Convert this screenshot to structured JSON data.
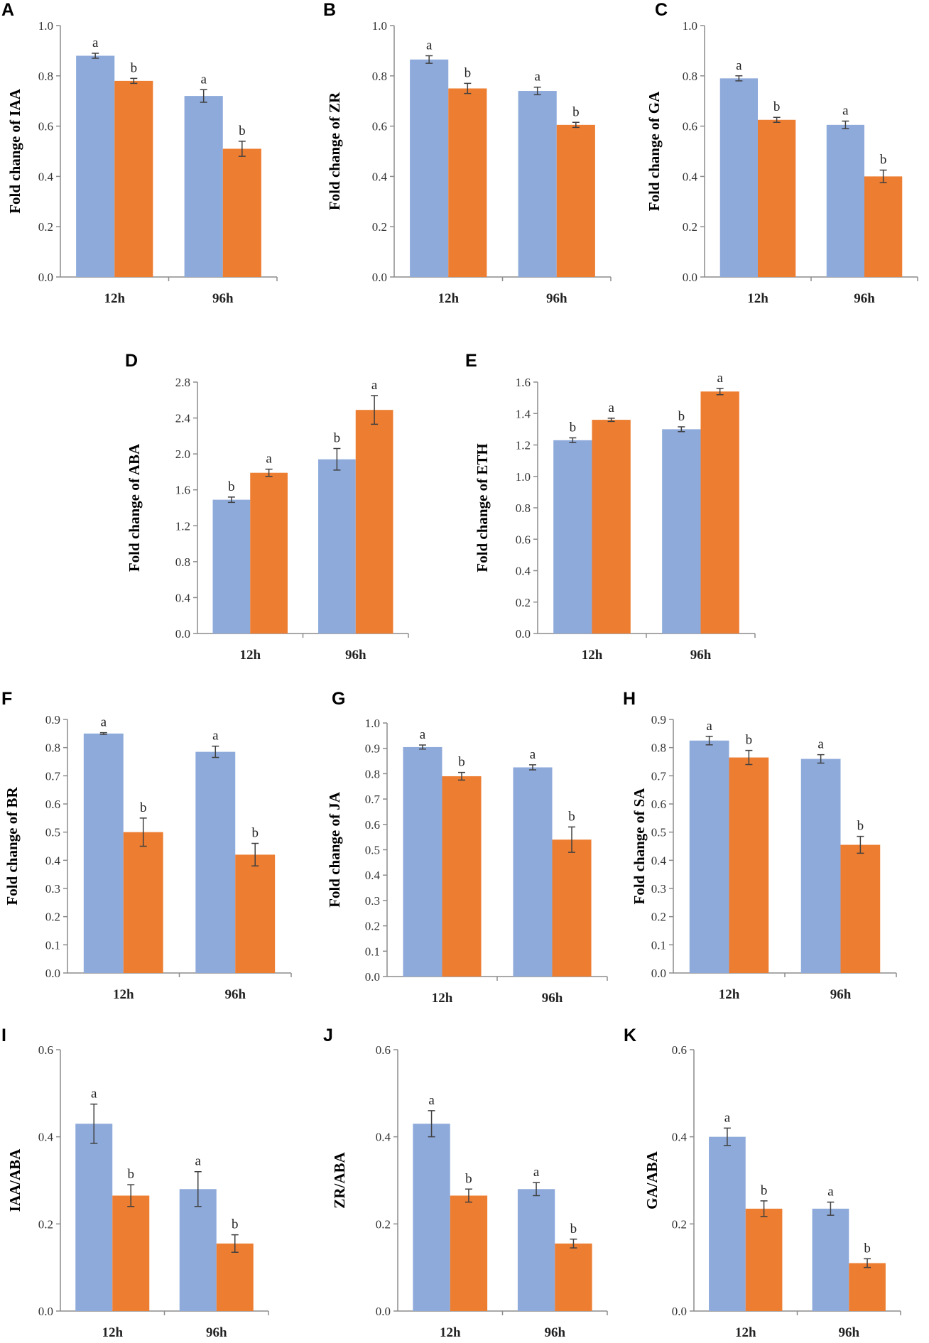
{
  "figure": {
    "colors": {
      "series_1": "#8eaadb",
      "series_2": "#ed7d31"
    }
  },
  "chart_data": [
    {
      "panel": "A",
      "type": "bar",
      "ylabel": "Fold change of IAA",
      "categories": [
        "12h",
        "96h"
      ],
      "ylim": [
        0,
        1.0
      ],
      "yticks": [
        "0.0",
        "0.2",
        "0.4",
        "0.6",
        "0.8",
        "1.0"
      ],
      "series": [
        {
          "name": "series 1",
          "values": [
            0.88,
            0.72
          ],
          "errors": [
            0.01,
            0.025
          ],
          "labels": [
            "a",
            "a"
          ]
        },
        {
          "name": "series 2",
          "values": [
            0.78,
            0.51
          ],
          "errors": [
            0.01,
            0.03
          ],
          "labels": [
            "b",
            "b"
          ]
        }
      ]
    },
    {
      "panel": "B",
      "type": "bar",
      "ylabel": "Fold change of ZR",
      "categories": [
        "12h",
        "96h"
      ],
      "ylim": [
        0,
        1.0
      ],
      "yticks": [
        "0.0",
        "0.2",
        "0.4",
        "0.6",
        "0.8",
        "1.0"
      ],
      "series": [
        {
          "name": "series 1",
          "values": [
            0.865,
            0.74
          ],
          "errors": [
            0.015,
            0.015
          ],
          "labels": [
            "a",
            "a"
          ]
        },
        {
          "name": "series 2",
          "values": [
            0.75,
            0.605
          ],
          "errors": [
            0.02,
            0.01
          ],
          "labels": [
            "b",
            "b"
          ]
        }
      ]
    },
    {
      "panel": "C",
      "type": "bar",
      "ylabel": "Fold change of GA",
      "categories": [
        "12h",
        "96h"
      ],
      "ylim": [
        0,
        1.0
      ],
      "yticks": [
        "0.0",
        "0.2",
        "0.4",
        "0.6",
        "0.8",
        "1.0"
      ],
      "series": [
        {
          "name": "series 1",
          "values": [
            0.79,
            0.605
          ],
          "errors": [
            0.01,
            0.015
          ],
          "labels": [
            "a",
            "a"
          ]
        },
        {
          "name": "series 2",
          "values": [
            0.625,
            0.4
          ],
          "errors": [
            0.01,
            0.025
          ],
          "labels": [
            "b",
            "b"
          ]
        }
      ]
    },
    {
      "panel": "D",
      "type": "bar",
      "ylabel": "Fold change of ABA",
      "categories": [
        "12h",
        "96h"
      ],
      "ylim": [
        0,
        2.8
      ],
      "yticks": [
        "0.0",
        "0.4",
        "0.8",
        "1.2",
        "1.6",
        "2.0",
        "2.4",
        "2.8"
      ],
      "series": [
        {
          "name": "series 1",
          "values": [
            1.49,
            1.94
          ],
          "errors": [
            0.03,
            0.12
          ],
          "labels": [
            "b",
            "b"
          ]
        },
        {
          "name": "series 2",
          "values": [
            1.79,
            2.49
          ],
          "errors": [
            0.04,
            0.16
          ],
          "labels": [
            "a",
            "a"
          ]
        }
      ]
    },
    {
      "panel": "E",
      "type": "bar",
      "ylabel": "Fold change of ETH",
      "categories": [
        "12h",
        "96h"
      ],
      "ylim": [
        0,
        1.6
      ],
      "yticks": [
        "0.0",
        "0.2",
        "0.4",
        "0.6",
        "0.8",
        "1.0",
        "1.2",
        "1.4",
        "1.6"
      ],
      "series": [
        {
          "name": "series 1",
          "values": [
            1.23,
            1.3
          ],
          "errors": [
            0.015,
            0.015
          ],
          "labels": [
            "b",
            "b"
          ]
        },
        {
          "name": "series 2",
          "values": [
            1.36,
            1.54
          ],
          "errors": [
            0.01,
            0.02
          ],
          "labels": [
            "a",
            "a"
          ]
        }
      ]
    },
    {
      "panel": "F",
      "type": "bar",
      "ylabel": "Fold change of BR",
      "categories": [
        "12h",
        "96h"
      ],
      "ylim": [
        0,
        0.9
      ],
      "yticks": [
        "0.0",
        "0.1",
        "0.2",
        "0.3",
        "0.4",
        "0.5",
        "0.6",
        "0.7",
        "0.8",
        "0.9"
      ],
      "series": [
        {
          "name": "series 1",
          "values": [
            0.85,
            0.785
          ],
          "errors": [
            0.003,
            0.02
          ],
          "labels": [
            "a",
            "a"
          ]
        },
        {
          "name": "series 2",
          "values": [
            0.5,
            0.42
          ],
          "errors": [
            0.05,
            0.04
          ],
          "labels": [
            "b",
            "b"
          ]
        }
      ]
    },
    {
      "panel": "G",
      "type": "bar",
      "ylabel": "Fold change of JA",
      "categories": [
        "12h",
        "96h"
      ],
      "ylim": [
        0,
        1.0
      ],
      "yticks": [
        "0.0",
        "0.1",
        "0.2",
        "0.3",
        "0.4",
        "0.5",
        "0.6",
        "0.7",
        "0.8",
        "0.9",
        "1.0"
      ],
      "series": [
        {
          "name": "series 1",
          "values": [
            0.905,
            0.825
          ],
          "errors": [
            0.008,
            0.01
          ],
          "labels": [
            "a",
            "a"
          ]
        },
        {
          "name": "series 2",
          "values": [
            0.79,
            0.54
          ],
          "errors": [
            0.015,
            0.05
          ],
          "labels": [
            "b",
            "b"
          ]
        }
      ]
    },
    {
      "panel": "H",
      "type": "bar",
      "ylabel": "Fold change of SA",
      "categories": [
        "12h",
        "96h"
      ],
      "ylim": [
        0,
        0.9
      ],
      "yticks": [
        "0.0",
        "0.1",
        "0.2",
        "0.3",
        "0.4",
        "0.5",
        "0.6",
        "0.7",
        "0.8",
        "0.9"
      ],
      "series": [
        {
          "name": "series 1",
          "values": [
            0.825,
            0.76
          ],
          "errors": [
            0.015,
            0.015
          ],
          "labels": [
            "a",
            "a"
          ]
        },
        {
          "name": "series 2",
          "values": [
            0.765,
            0.455
          ],
          "errors": [
            0.025,
            0.03
          ],
          "labels": [
            "b",
            "b"
          ]
        }
      ]
    },
    {
      "panel": "I",
      "type": "bar",
      "ylabel": "IAA/ABA",
      "categories": [
        "12h",
        "96h"
      ],
      "ylim": [
        0,
        0.6
      ],
      "yticks": [
        "0.0",
        "0.2",
        "0.4",
        "0.6"
      ],
      "series": [
        {
          "name": "series 1",
          "values": [
            0.43,
            0.28
          ],
          "errors": [
            0.045,
            0.04
          ],
          "labels": [
            "a",
            "a"
          ]
        },
        {
          "name": "series 2",
          "values": [
            0.265,
            0.155
          ],
          "errors": [
            0.025,
            0.02
          ],
          "labels": [
            "b",
            "b"
          ]
        }
      ]
    },
    {
      "panel": "J",
      "type": "bar",
      "ylabel": "ZR/ABA",
      "categories": [
        "12h",
        "96h"
      ],
      "ylim": [
        0,
        0.6
      ],
      "yticks": [
        "0.0",
        "0.2",
        "0.4",
        "0.6"
      ],
      "series": [
        {
          "name": "series 1",
          "values": [
            0.43,
            0.28
          ],
          "errors": [
            0.03,
            0.015
          ],
          "labels": [
            "a",
            "a"
          ]
        },
        {
          "name": "series 2",
          "values": [
            0.265,
            0.155
          ],
          "errors": [
            0.015,
            0.01
          ],
          "labels": [
            "b",
            "b"
          ]
        }
      ]
    },
    {
      "panel": "K",
      "type": "bar",
      "ylabel": "GA/ABA",
      "categories": [
        "12h",
        "96h"
      ],
      "ylim": [
        0,
        0.6
      ],
      "yticks": [
        "0.0",
        "0.2",
        "0.4",
        "0.6"
      ],
      "series": [
        {
          "name": "series 1",
          "values": [
            0.4,
            0.235
          ],
          "errors": [
            0.02,
            0.015
          ],
          "labels": [
            "a",
            "a"
          ]
        },
        {
          "name": "series 2",
          "values": [
            0.235,
            0.11
          ],
          "errors": [
            0.018,
            0.01
          ],
          "labels": [
            "b",
            "b"
          ]
        }
      ]
    }
  ]
}
